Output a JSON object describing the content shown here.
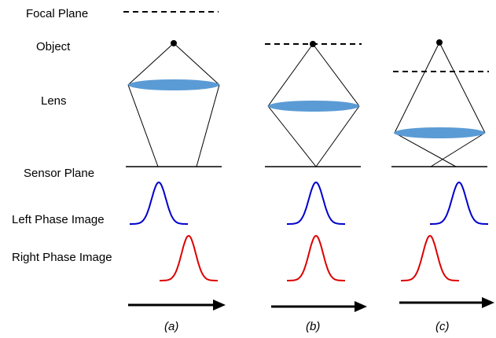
{
  "labels": {
    "focal_plane": "Focal Plane",
    "object": "Object",
    "lens": "Lens",
    "sensor_plane": "Sensor Plane",
    "left_phase": "Left Phase Image",
    "right_phase": "Right Phase Image"
  },
  "panels": [
    {
      "caption": "(a)"
    },
    {
      "caption": "(b)"
    },
    {
      "caption": "(c)"
    }
  ],
  "colors": {
    "lens": "#5b9bd5",
    "left_phase": "#0000cc",
    "right_phase": "#dd0000",
    "ink": "#000000"
  }
}
